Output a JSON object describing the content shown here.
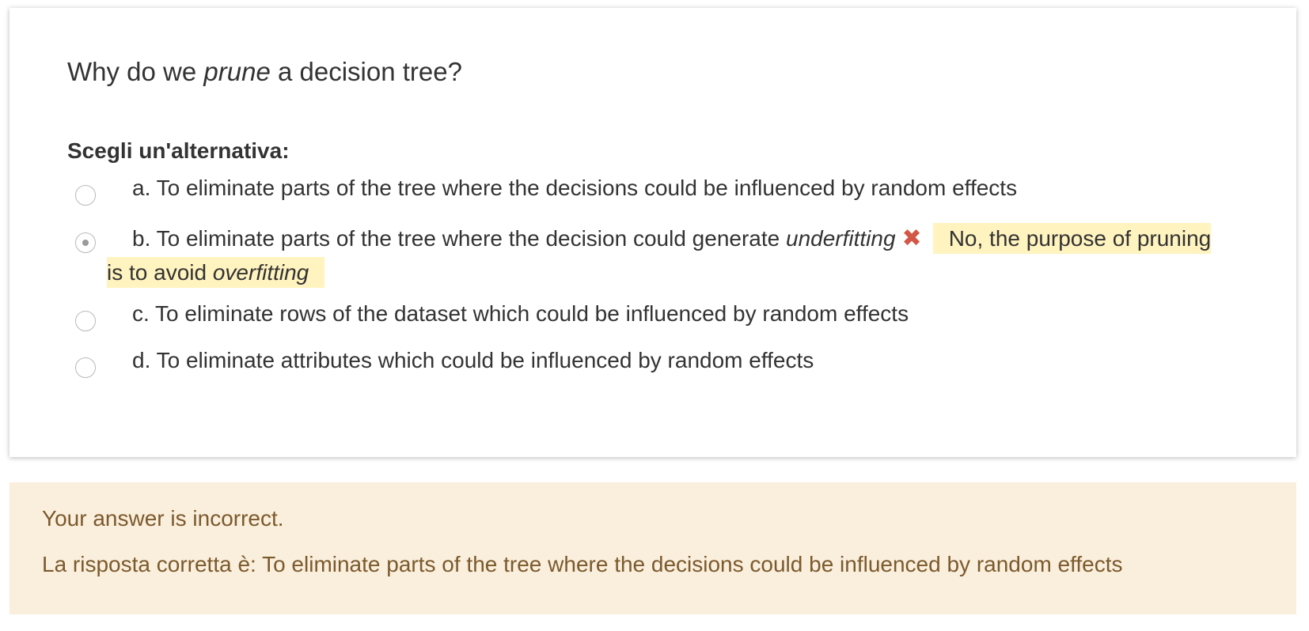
{
  "question": {
    "text_before": "Why do we ",
    "text_emphasis": "prune",
    "text_after": " a decision tree?"
  },
  "prompt_label": "Scegli un'alternativa:",
  "options": [
    {
      "label": "a. To eliminate parts of the tree where the decisions could be influenced by random effects",
      "selected": false
    },
    {
      "label_before": "b. To eliminate parts of the tree where the decision could generate ",
      "label_emphasis": "underfitting",
      "selected": true,
      "status_icon": "cross-icon",
      "status_glyph": "✖",
      "feedback_before": "No, the purpose of pruning is to avoid ",
      "feedback_emphasis": "overfitting"
    },
    {
      "label": "c. To eliminate rows of the dataset which could be influenced by random effects",
      "selected": false
    },
    {
      "label": "d. To eliminate attributes which could be influenced by random effects",
      "selected": false
    }
  ],
  "outcome": {
    "status": "Your answer is incorrect.",
    "correct_answer": "La risposta corretta è: To eliminate parts of the tree where the decisions could be influenced by random effects"
  },
  "colors": {
    "incorrect_icon": "#d25746",
    "feedback_highlight": "#fff3bf",
    "outcome_background": "#faeedd",
    "outcome_text": "#7b5a2c"
  }
}
